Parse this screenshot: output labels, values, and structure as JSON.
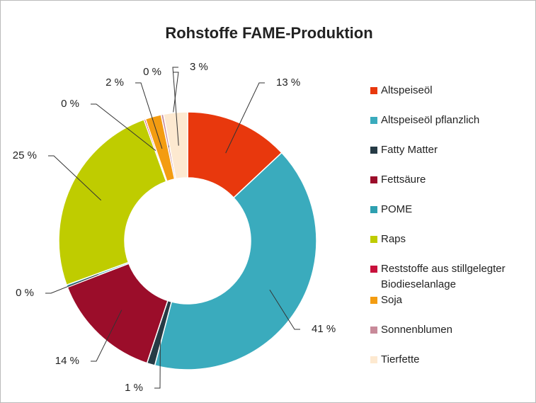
{
  "chart_data": {
    "type": "donut",
    "title": "Rohstoffe FAME-Produktion",
    "categories": [
      "Altspeiseöl",
      "Altspeiseöl pflanzlich",
      "Fatty Matter",
      "Fettsäure",
      "POME",
      "Raps",
      "Reststoffe aus stillgelegter Biodieselanlage",
      "Soja",
      "Sonnenblumen",
      "Tierfette"
    ],
    "values": [
      13,
      41,
      1,
      14,
      0.3,
      25,
      0.2,
      2,
      0.3,
      3
    ],
    "value_labels": [
      "13 %",
      "41 %",
      "1 %",
      "14 %",
      "0 %",
      "25 %",
      "0 %",
      "2 %",
      "0 %",
      "3 %"
    ],
    "colors": [
      "#e8380d",
      "#3aabbd",
      "#263b45",
      "#9b0d2a",
      "#2ea0b0",
      "#bfcc00",
      "#c8103c",
      "#f39c11",
      "#c88a99",
      "#fde9d0"
    ],
    "legend": "right"
  }
}
